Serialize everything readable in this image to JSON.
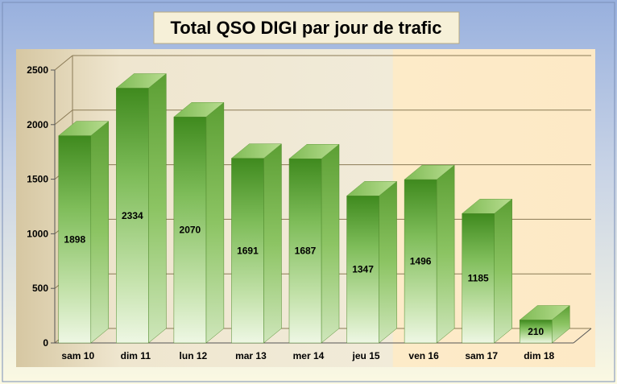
{
  "chart_data": {
    "type": "bar",
    "title": "Total QSO DIGI par jour de trafic",
    "categories": [
      "sam 10",
      "dim 11",
      "lun 12",
      "mar 13",
      "mer 14",
      "jeu 15",
      "ven 16",
      "sam 17",
      "dim 18"
    ],
    "values": [
      1898,
      2334,
      2070,
      1691,
      1687,
      1347,
      1496,
      1185,
      210
    ],
    "ylim": [
      0,
      2500
    ],
    "yticks": [
      0,
      500,
      1000,
      1500,
      2000,
      2500
    ],
    "grid": true,
    "legend": "none",
    "style": "3d-bars"
  },
  "colors": {
    "background_top": "#9db4e0",
    "background_bottom": "#fdfbe0",
    "bar_light": "#e8f3d8",
    "bar_mid": "#8cc460",
    "bar_dark": "#2e7a12",
    "bar_top": "#a9d27e",
    "bar_side": "#5aa23a",
    "plot_left": "#d9c9a4",
    "plot_mid": "#f1ead6",
    "plot_right": "#fdebc9"
  }
}
